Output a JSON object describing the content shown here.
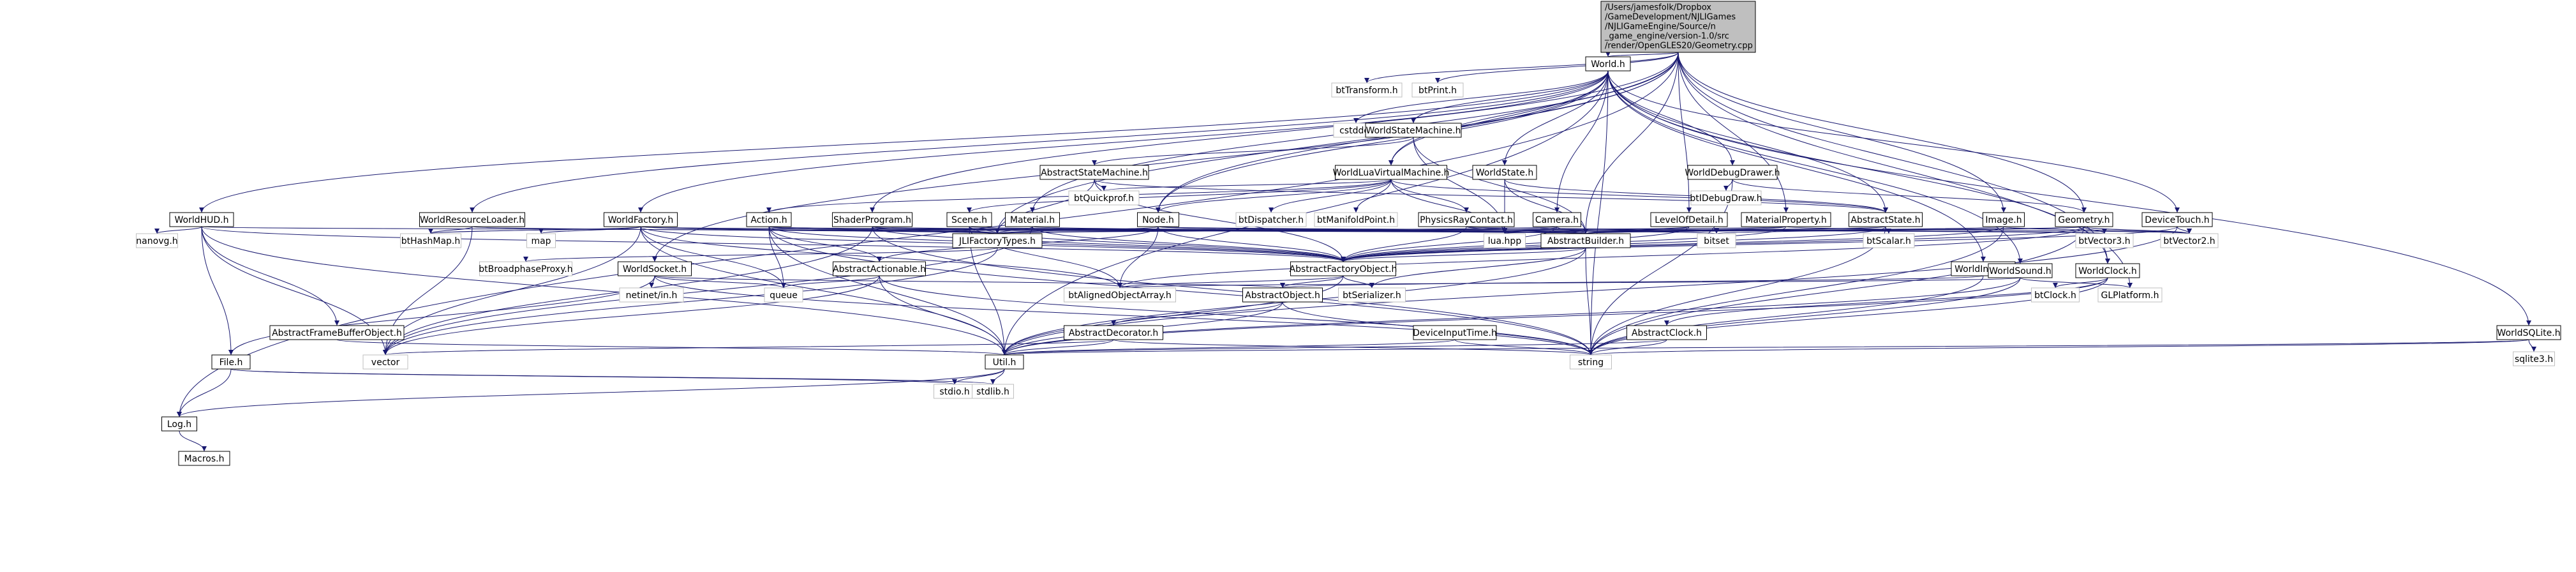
{
  "root": {
    "lines": [
      "/Users/jamesfolk/Dropbox",
      "/GameDevelopment/NJLIGames",
      "/NJLIGameEngine/Source/n",
      "_game_engine/version-1.0/src",
      "/render/OpenGLES20/Geometry.cpp"
    ]
  },
  "nodes": [
    {
      "id": "world_h",
      "label": "World.h",
      "kind": "doc"
    },
    {
      "id": "bttransform",
      "label": "btTransform.h",
      "kind": "ext"
    },
    {
      "id": "btprint",
      "label": "btPrint.h",
      "kind": "ext"
    },
    {
      "id": "cstddef",
      "label": "cstddef",
      "kind": "ext"
    },
    {
      "id": "worldstatemachine",
      "label": "WorldStateMachine.h",
      "kind": "doc"
    },
    {
      "id": "worldstate",
      "label": "WorldState.h",
      "kind": "doc"
    },
    {
      "id": "worlddebugdrawer",
      "label": "WorldDebugDrawer.h",
      "kind": "doc"
    },
    {
      "id": "abstractstatemachine",
      "label": "AbstractStateMachine.h",
      "kind": "doc"
    },
    {
      "id": "worldluavm",
      "label": "WorldLuaVirtualMachine.h",
      "kind": "doc"
    },
    {
      "id": "btquickprof",
      "label": "btQuickprof.h",
      "kind": "ext"
    },
    {
      "id": "btdebugdraw",
      "label": "btIDebugDraw.h",
      "kind": "ext"
    },
    {
      "id": "worldhud",
      "label": "WorldHUD.h",
      "kind": "doc"
    },
    {
      "id": "worldresourceloader",
      "label": "WorldResourceLoader.h",
      "kind": "doc"
    },
    {
      "id": "worldfactory",
      "label": "WorldFactory.h",
      "kind": "doc"
    },
    {
      "id": "action",
      "label": "Action.h",
      "kind": "doc"
    },
    {
      "id": "shaderprogram",
      "label": "ShaderProgram.h",
      "kind": "doc"
    },
    {
      "id": "scene",
      "label": "Scene.h",
      "kind": "doc"
    },
    {
      "id": "material",
      "label": "Material.h",
      "kind": "doc"
    },
    {
      "id": "node",
      "label": "Node.h",
      "kind": "doc"
    },
    {
      "id": "btdispatcher",
      "label": "btDispatcher.h",
      "kind": "ext"
    },
    {
      "id": "btmanifoldpoint",
      "label": "btManifoldPoint.h",
      "kind": "ext"
    },
    {
      "id": "physicsraycontact",
      "label": "PhysicsRayContact.h",
      "kind": "doc"
    },
    {
      "id": "camera",
      "label": "Camera.h",
      "kind": "doc"
    },
    {
      "id": "levelofdetail",
      "label": "LevelOfDetail.h",
      "kind": "doc"
    },
    {
      "id": "materialproperty",
      "label": "MaterialProperty.h",
      "kind": "doc"
    },
    {
      "id": "abstractstate",
      "label": "AbstractState.h",
      "kind": "doc"
    },
    {
      "id": "image",
      "label": "Image.h",
      "kind": "doc"
    },
    {
      "id": "geometry",
      "label": "Geometry.h",
      "kind": "doc"
    },
    {
      "id": "devicetouch",
      "label": "DeviceTouch.h",
      "kind": "doc"
    },
    {
      "id": "nanovg",
      "label": "nanovg.h",
      "kind": "ext"
    },
    {
      "id": "bthashmap",
      "label": "btHashMap.h",
      "kind": "ext"
    },
    {
      "id": "map",
      "label": "map",
      "kind": "ext"
    },
    {
      "id": "jlifactorytypes",
      "label": "JLIFactoryTypes.h",
      "kind": "doc"
    },
    {
      "id": "abstractbuilder",
      "label": "AbstractBuilder.h",
      "kind": "doc"
    },
    {
      "id": "luahpp",
      "label": "lua.hpp",
      "kind": "ext"
    },
    {
      "id": "bitset",
      "label": "bitset",
      "kind": "ext"
    },
    {
      "id": "btscalar",
      "label": "btScalar.h",
      "kind": "ext"
    },
    {
      "id": "btvector3",
      "label": "btVector3.h",
      "kind": "ext"
    },
    {
      "id": "btvector2",
      "label": "btVector2.h",
      "kind": "ext"
    },
    {
      "id": "btbroadphaseproxy",
      "label": "btBroadphaseProxy.h",
      "kind": "ext"
    },
    {
      "id": "worldsocket",
      "label": "WorldSocket.h",
      "kind": "doc"
    },
    {
      "id": "abstractactionable",
      "label": "AbstractActionable.h",
      "kind": "doc"
    },
    {
      "id": "abstractfactoryobject",
      "label": "AbstractFactoryObject.h",
      "kind": "doc"
    },
    {
      "id": "worldinput",
      "label": "WorldInput.h",
      "kind": "doc"
    },
    {
      "id": "worldsound",
      "label": "WorldSound.h",
      "kind": "doc"
    },
    {
      "id": "worldclock",
      "label": "WorldClock.h",
      "kind": "doc"
    },
    {
      "id": "netinet",
      "label": "netinet/in.h",
      "kind": "ext"
    },
    {
      "id": "queue",
      "label": "queue",
      "kind": "ext"
    },
    {
      "id": "btalignedobjectarray",
      "label": "btAlignedObjectArray.h",
      "kind": "ext"
    },
    {
      "id": "abstractobject",
      "label": "AbstractObject.h",
      "kind": "doc"
    },
    {
      "id": "btserializer",
      "label": "btSerializer.h",
      "kind": "ext"
    },
    {
      "id": "btclock",
      "label": "btClock.h",
      "kind": "ext"
    },
    {
      "id": "glplatform",
      "label": "GLPlatform.h",
      "kind": "ext"
    },
    {
      "id": "abstractframebuffer",
      "label": "AbstractFrameBufferObject.h",
      "kind": "doc"
    },
    {
      "id": "abstractdecorator",
      "label": "AbstractDecorator.h",
      "kind": "doc"
    },
    {
      "id": "deviceinputtime",
      "label": "DeviceInputTime.h",
      "kind": "doc"
    },
    {
      "id": "abstractclock",
      "label": "AbstractClock.h",
      "kind": "doc"
    },
    {
      "id": "worldsqlite",
      "label": "WorldSQLite.h",
      "kind": "doc"
    },
    {
      "id": "sqlite3",
      "label": "sqlite3.h",
      "kind": "ext"
    },
    {
      "id": "file",
      "label": "File.h",
      "kind": "doc"
    },
    {
      "id": "vector",
      "label": "vector",
      "kind": "ext"
    },
    {
      "id": "util",
      "label": "Util.h",
      "kind": "doc"
    },
    {
      "id": "string",
      "label": "string",
      "kind": "ext"
    },
    {
      "id": "stdio",
      "label": "stdio.h",
      "kind": "ext"
    },
    {
      "id": "stdlib",
      "label": "stdlib.h",
      "kind": "ext"
    },
    {
      "id": "log",
      "label": "Log.h",
      "kind": "doc"
    },
    {
      "id": "macros",
      "label": "Macros.h",
      "kind": "doc"
    }
  ],
  "edges": [
    [
      "root",
      "world_h"
    ],
    [
      "root",
      "bttransform"
    ],
    [
      "root",
      "btprint"
    ],
    [
      "root",
      "shaderprogram"
    ],
    [
      "root",
      "material"
    ],
    [
      "root",
      "levelofdetail"
    ],
    [
      "root",
      "materialproperty"
    ],
    [
      "root",
      "image"
    ],
    [
      "root",
      "geometry"
    ],
    [
      "root",
      "node"
    ],
    [
      "root",
      "worldluavm"
    ],
    [
      "root",
      "worldclock"
    ],
    [
      "root",
      "glplatform"
    ],
    [
      "root",
      "log"
    ],
    [
      "root",
      "jlifactorytypes"
    ],
    [
      "root",
      "abstractbuilder"
    ],
    [
      "world_h",
      "cstddef"
    ],
    [
      "world_h",
      "worldstatemachine"
    ],
    [
      "world_h",
      "worldstate"
    ],
    [
      "world_h",
      "worlddebugdrawer"
    ],
    [
      "world_h",
      "worldluavm"
    ],
    [
      "world_h",
      "worldhud"
    ],
    [
      "world_h",
      "worldresourceloader"
    ],
    [
      "world_h",
      "worldfactory"
    ],
    [
      "world_h",
      "camera"
    ],
    [
      "world_h",
      "node"
    ],
    [
      "world_h",
      "devicetouch"
    ],
    [
      "world_h",
      "worldinput"
    ],
    [
      "world_h",
      "worldsound"
    ],
    [
      "world_h",
      "worldclock"
    ],
    [
      "world_h",
      "worldsqlite"
    ],
    [
      "world_h",
      "worldsocket"
    ],
    [
      "world_h",
      "string"
    ],
    [
      "world_h",
      "util"
    ],
    [
      "world_h",
      "abstractstate"
    ],
    [
      "worldstatemachine",
      "abstractstatemachine"
    ],
    [
      "worldstatemachine",
      "abstractbuilder"
    ],
    [
      "worldstatemachine",
      "luahpp"
    ],
    [
      "worldstate",
      "abstractstate"
    ],
    [
      "worldstate",
      "abstractbuilder"
    ],
    [
      "worldstate",
      "luahpp"
    ],
    [
      "worlddebugdrawer",
      "btdebugdraw"
    ],
    [
      "worlddebugdrawer",
      "geometry"
    ],
    [
      "worlddebugdrawer",
      "string"
    ],
    [
      "abstractstatemachine",
      "btquickprof"
    ],
    [
      "abstractstatemachine",
      "abstractstate"
    ],
    [
      "abstractstatemachine",
      "jlifactorytypes"
    ],
    [
      "abstractstatemachine",
      "abstractfactoryobject"
    ],
    [
      "worldluavm",
      "btquickprof"
    ],
    [
      "worldluavm",
      "btdispatcher"
    ],
    [
      "worldluavm",
      "btmanifoldpoint"
    ],
    [
      "worldluavm",
      "physicsraycontact"
    ],
    [
      "worldluavm",
      "luahpp"
    ],
    [
      "worldluavm",
      "action"
    ],
    [
      "worldluavm",
      "scene"
    ],
    [
      "worldluavm",
      "node"
    ],
    [
      "worldluavm",
      "abstractstate"
    ],
    [
      "worldhud",
      "nanovg"
    ],
    [
      "worldhud",
      "file"
    ],
    [
      "worldhud",
      "vector"
    ],
    [
      "worldhud",
      "util"
    ],
    [
      "worldhud",
      "abstractframebuffer"
    ],
    [
      "worldhud",
      "abstractbuilder"
    ],
    [
      "worldhud",
      "abstractfactoryobject"
    ],
    [
      "worldresourceloader",
      "bthashmap"
    ],
    [
      "worldresourceloader",
      "vector"
    ],
    [
      "worldresourceloader",
      "jlifactorytypes"
    ],
    [
      "worldfactory",
      "bthashmap"
    ],
    [
      "worldfactory",
      "map"
    ],
    [
      "worldfactory",
      "queue"
    ],
    [
      "worldfactory",
      "jlifactorytypes"
    ],
    [
      "worldfactory",
      "abstractbuilder"
    ],
    [
      "worldfactory",
      "vector"
    ],
    [
      "worldfactory",
      "util"
    ],
    [
      "worldfactory",
      "btalignedobjectarray"
    ],
    [
      "worldfactory",
      "abstractfactoryobject"
    ],
    [
      "action",
      "jlifactorytypes"
    ],
    [
      "action",
      "abstractactionable"
    ],
    [
      "action",
      "abstractbuilder"
    ],
    [
      "action",
      "abstractfactoryobject"
    ],
    [
      "action",
      "queue"
    ],
    [
      "action",
      "util"
    ],
    [
      "action",
      "string"
    ],
    [
      "shaderprogram",
      "jlifactorytypes"
    ],
    [
      "shaderprogram",
      "abstractbuilder"
    ],
    [
      "shaderprogram",
      "abstractfactoryobject"
    ],
    [
      "shaderprogram",
      "vector"
    ],
    [
      "shaderprogram",
      "string"
    ],
    [
      "scene",
      "jlifactorytypes"
    ],
    [
      "scene",
      "abstractbuilder"
    ],
    [
      "scene",
      "abstractfactoryobject"
    ],
    [
      "scene",
      "btalignedobjectarray"
    ],
    [
      "scene",
      "util"
    ],
    [
      "material",
      "jlifactorytypes"
    ],
    [
      "material",
      "abstractbuilder"
    ],
    [
      "material",
      "abstractfactoryobject"
    ],
    [
      "material",
      "vector"
    ],
    [
      "node",
      "jlifactorytypes"
    ],
    [
      "node",
      "abstractbuilder"
    ],
    [
      "node",
      "abstractfactoryobject"
    ],
    [
      "node",
      "abstractactionable"
    ],
    [
      "node",
      "btvector3"
    ],
    [
      "node",
      "bitset"
    ],
    [
      "node",
      "btalignedobjectarray"
    ],
    [
      "physicsraycontact",
      "abstractbuilder"
    ],
    [
      "physicsraycontact",
      "abstractfactoryobject"
    ],
    [
      "physicsraycontact",
      "btvector3"
    ],
    [
      "camera",
      "abstractbuilder"
    ],
    [
      "camera",
      "abstractfactoryobject"
    ],
    [
      "camera",
      "jlifactorytypes"
    ],
    [
      "camera",
      "luahpp"
    ],
    [
      "levelofdetail",
      "abstractbuilder"
    ],
    [
      "levelofdetail",
      "abstractfactoryobject"
    ],
    [
      "levelofdetail",
      "luahpp"
    ],
    [
      "materialproperty",
      "abstractbuilder"
    ],
    [
      "materialproperty",
      "abstractfactoryobject"
    ],
    [
      "materialproperty",
      "btvector2"
    ],
    [
      "materialproperty",
      "jlifactorytypes"
    ],
    [
      "abstractstate",
      "abstractbuilder"
    ],
    [
      "abstractstate",
      "btscalar"
    ],
    [
      "abstractstate",
      "luahpp"
    ],
    [
      "abstractstate",
      "string"
    ],
    [
      "abstractstate",
      "abstractfactoryobject"
    ],
    [
      "image",
      "abstractbuilder"
    ],
    [
      "image",
      "abstractfactoryobject"
    ],
    [
      "image",
      "btvector2"
    ],
    [
      "image",
      "string"
    ],
    [
      "geometry",
      "abstractbuilder"
    ],
    [
      "geometry",
      "abstractfactoryobject"
    ],
    [
      "geometry",
      "btvector2"
    ],
    [
      "geometry",
      "btvector3"
    ],
    [
      "geometry",
      "bitset"
    ],
    [
      "geometry",
      "string"
    ],
    [
      "geometry",
      "btalignedobjectarray"
    ],
    [
      "devicetouch",
      "btvector2"
    ],
    [
      "devicetouch",
      "abstractfactoryobject"
    ],
    [
      "devicetouch",
      "util"
    ],
    [
      "jlifactorytypes",
      "btbroadphaseproxy"
    ],
    [
      "jlifactorytypes",
      "vector"
    ],
    [
      "abstractbuilder",
      "abstractfactoryobject"
    ],
    [
      "abstractbuilder",
      "util"
    ],
    [
      "abstractbuilder",
      "string"
    ],
    [
      "abstractbuilder",
      "btserializer"
    ],
    [
      "worldsocket",
      "netinet"
    ],
    [
      "worldsocket",
      "queue"
    ],
    [
      "worldsocket",
      "abstractobject"
    ],
    [
      "worldsocket",
      "file"
    ],
    [
      "worldsocket",
      "string"
    ],
    [
      "abstractactionable",
      "queue"
    ],
    [
      "abstractactionable",
      "vector"
    ],
    [
      "abstractactionable",
      "util"
    ],
    [
      "abstractactionable",
      "string"
    ],
    [
      "abstractfactoryobject",
      "abstractobject"
    ],
    [
      "abstractfactoryobject",
      "btserializer"
    ],
    [
      "abstractfactoryobject",
      "btalignedobjectarray"
    ],
    [
      "abstractfactoryobject",
      "util"
    ],
    [
      "worldinput",
      "abstractobject"
    ],
    [
      "worldinput",
      "string"
    ],
    [
      "worldsound",
      "btalignedobjectarray"
    ],
    [
      "worldsound",
      "glplatform"
    ],
    [
      "worldsound",
      "util"
    ],
    [
      "worldsound",
      "string"
    ],
    [
      "worldclock",
      "btclock"
    ],
    [
      "worldclock",
      "abstractclock"
    ],
    [
      "worldclock",
      "string"
    ],
    [
      "worldclock",
      "util"
    ],
    [
      "abstractobject",
      "abstractdecorator"
    ],
    [
      "abstractobject",
      "util"
    ],
    [
      "abstractobject",
      "string"
    ],
    [
      "abstractdecorator",
      "util"
    ],
    [
      "abstractdecorator",
      "vector"
    ],
    [
      "abstractdecorator",
      "string"
    ],
    [
      "deviceinputtime",
      "util"
    ],
    [
      "deviceinputtime",
      "string"
    ],
    [
      "abstractclock",
      "util"
    ],
    [
      "abstractclock",
      "string"
    ],
    [
      "worldsqlite",
      "sqlite3"
    ],
    [
      "worldsqlite",
      "string"
    ],
    [
      "worldsqlite",
      "util"
    ],
    [
      "abstractframebuffer",
      "util"
    ],
    [
      "file",
      "stdio"
    ],
    [
      "file",
      "stdlib"
    ],
    [
      "file",
      "log"
    ],
    [
      "util",
      "stdio"
    ],
    [
      "util",
      "stdlib"
    ],
    [
      "util",
      "log"
    ],
    [
      "log",
      "macros"
    ]
  ]
}
